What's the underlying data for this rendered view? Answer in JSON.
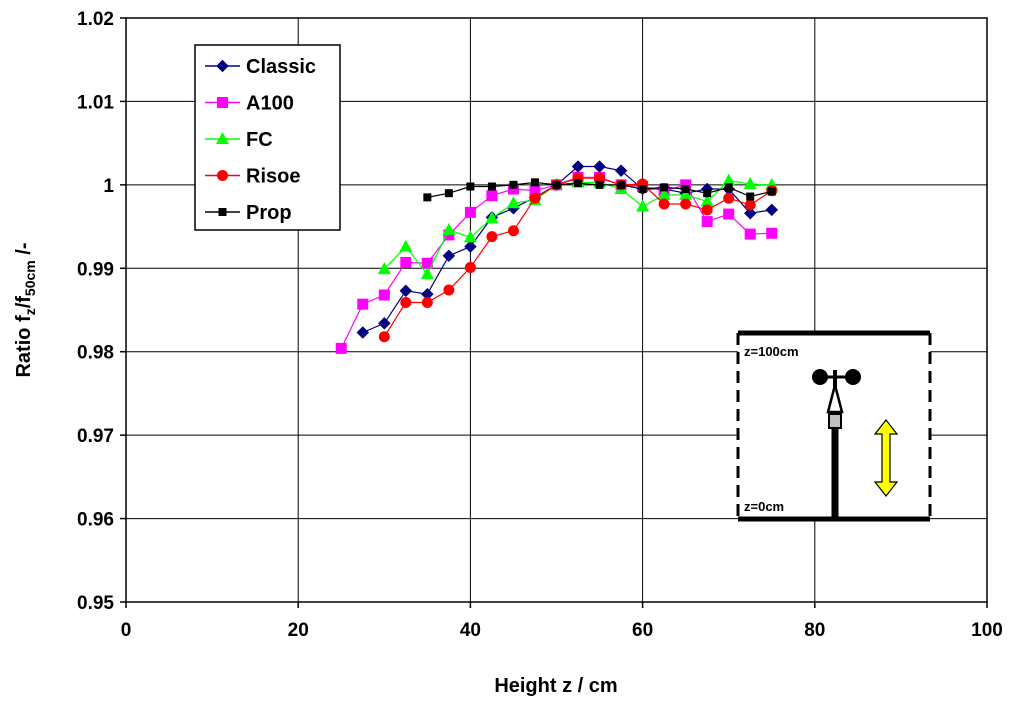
{
  "chart_data": {
    "type": "line",
    "xlabel": "Height z / cm",
    "ylabel": {
      "main": "Ratio f",
      "sub1": "z",
      "mid": "/f",
      "sub2": "50cm",
      "end": " /-"
    },
    "xlim": [
      0,
      100
    ],
    "ylim": [
      0.95,
      1.02
    ],
    "x_ticks": [
      0,
      20,
      40,
      60,
      80,
      100
    ],
    "x_tick_labels": [
      "0",
      "20",
      "40",
      "60",
      "80",
      "100"
    ],
    "y_ticks": [
      0.95,
      0.96,
      0.97,
      0.98,
      0.99,
      1.0,
      1.01,
      1.02
    ],
    "y_tick_labels": [
      "0.95",
      "0.96",
      "0.97",
      "0.98",
      "0.99",
      "1",
      "1.01",
      "1.02"
    ],
    "grid": true,
    "legend_position": "top-left",
    "series": [
      {
        "name": "Classic",
        "color": "#000080",
        "marker": "diamond",
        "points": [
          [
            27.5,
            0.9823
          ],
          [
            30,
            0.9834
          ],
          [
            32.5,
            0.9873
          ],
          [
            35,
            0.9869
          ],
          [
            37.5,
            0.9915
          ],
          [
            40,
            0.9926
          ],
          [
            42.5,
            0.9961
          ],
          [
            45,
            0.9972
          ],
          [
            47.5,
            0.9985
          ],
          [
            50,
            1.0
          ],
          [
            52.5,
            1.0022
          ],
          [
            55,
            1.0022
          ],
          [
            57.5,
            1.0017
          ],
          [
            60,
            0.9995
          ],
          [
            62.5,
            0.9995
          ],
          [
            65,
            0.999
          ],
          [
            67.5,
            0.9995
          ],
          [
            70,
            0.9995
          ],
          [
            72.5,
            0.9966
          ],
          [
            75,
            0.997
          ]
        ]
      },
      {
        "name": "A100",
        "color": "#ff00ff",
        "marker": "square",
        "points": [
          [
            25,
            0.9804
          ],
          [
            27.5,
            0.9857
          ],
          [
            30,
            0.9868
          ],
          [
            32.5,
            0.9907
          ],
          [
            35,
            0.9906
          ],
          [
            37.5,
            0.994
          ],
          [
            40,
            0.9967
          ],
          [
            42.5,
            0.9987
          ],
          [
            45,
            0.9995
          ],
          [
            47.5,
            0.9993
          ],
          [
            50,
            1.0
          ],
          [
            52.5,
            1.0009
          ],
          [
            55,
            1.0009
          ],
          [
            57.5,
            1.0
          ],
          [
            60,
            0.9998
          ],
          [
            62.5,
            0.9993
          ],
          [
            65,
            1.0
          ],
          [
            67.5,
            0.9956
          ],
          [
            70,
            0.9965
          ],
          [
            72.5,
            0.9941
          ],
          [
            75,
            0.9942
          ]
        ]
      },
      {
        "name": "FC",
        "color": "#00ff00",
        "marker": "triangle",
        "points": [
          [
            30,
            0.9899
          ],
          [
            32.5,
            0.9926
          ],
          [
            35,
            0.9893
          ],
          [
            37.5,
            0.9946
          ],
          [
            40,
            0.9937
          ],
          [
            42.5,
            0.996
          ],
          [
            45,
            0.9978
          ],
          [
            47.5,
            0.9982
          ],
          [
            50,
            1.0
          ],
          [
            52.5,
            1.0003
          ],
          [
            55,
            1.0003
          ],
          [
            57.5,
            0.9995
          ],
          [
            60,
            0.9974
          ],
          [
            62.5,
            0.9988
          ],
          [
            65,
            0.9988
          ],
          [
            67.5,
            0.998
          ],
          [
            70,
            1.0005
          ],
          [
            72.5,
            1.0001
          ],
          [
            75,
            1.0
          ]
        ]
      },
      {
        "name": "Risoe",
        "color": "#ff0000",
        "marker": "circle",
        "points": [
          [
            30,
            0.9818
          ],
          [
            32.5,
            0.9859
          ],
          [
            35,
            0.9859
          ],
          [
            37.5,
            0.9874
          ],
          [
            40,
            0.9901
          ],
          [
            42.5,
            0.9938
          ],
          [
            45,
            0.9945
          ],
          [
            47.5,
            0.9984
          ],
          [
            50,
            1.0
          ],
          [
            52.5,
            1.0008
          ],
          [
            55,
            1.0008
          ],
          [
            57.5,
            1.0
          ],
          [
            60,
            1.0001
          ],
          [
            62.5,
            0.9977
          ],
          [
            65,
            0.9977
          ],
          [
            67.5,
            0.997
          ],
          [
            70,
            0.9984
          ],
          [
            72.5,
            0.9976
          ],
          [
            75,
            0.9993
          ]
        ]
      },
      {
        "name": "Prop",
        "color": "#000000",
        "marker": "square-small",
        "points": [
          [
            35,
            0.9985
          ],
          [
            37.5,
            0.999
          ],
          [
            40,
            0.9998
          ],
          [
            42.5,
            0.9998
          ],
          [
            45,
            1.0
          ],
          [
            47.5,
            1.0003
          ],
          [
            50,
            1.0
          ],
          [
            52.5,
            1.0002
          ],
          [
            55,
            1.0
          ],
          [
            57.5,
            1.0
          ],
          [
            60,
            0.9995
          ],
          [
            62.5,
            0.9997
          ],
          [
            65,
            0.9995
          ],
          [
            67.5,
            0.999
          ],
          [
            70,
            0.9997
          ],
          [
            72.5,
            0.9986
          ],
          [
            75,
            0.9992
          ]
        ]
      }
    ],
    "inset": {
      "top_label": "z=100cm",
      "bottom_label": "z=0cm",
      "arrow_color": "#ffff00"
    }
  }
}
